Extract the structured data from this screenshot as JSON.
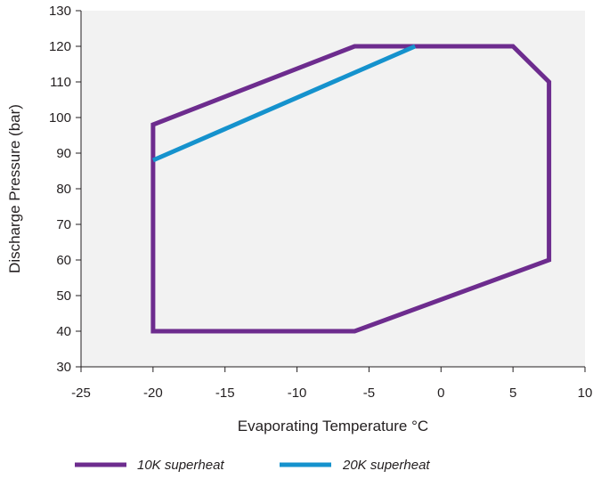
{
  "chart_data": {
    "type": "line",
    "title": "",
    "xlabel": "Evaporating Temperature °C",
    "ylabel": "Discharge Pressure (bar)",
    "xlim": [
      -25,
      10
    ],
    "ylim": [
      30,
      130
    ],
    "xticks": [
      -25,
      -20,
      -15,
      -10,
      -5,
      0,
      5,
      10
    ],
    "yticks": [
      30,
      40,
      50,
      60,
      70,
      80,
      90,
      100,
      110,
      120,
      130
    ],
    "grid": false,
    "legend_position": "bottom",
    "series": [
      {
        "name": "10K superheat",
        "color": "#6d2c8e",
        "closed": true,
        "x": [
          -20,
          -20,
          -6,
          5,
          7.5,
          7.5,
          -6
        ],
        "y": [
          40,
          98,
          120,
          120,
          110,
          60,
          40
        ]
      },
      {
        "name": "20K superheat",
        "color": "#1592cd",
        "closed": false,
        "x": [
          -20,
          -1.8
        ],
        "y": [
          88,
          120
        ]
      }
    ]
  },
  "colors": {
    "plot_background": "#f2f2f2",
    "axis": "#231f20"
  }
}
